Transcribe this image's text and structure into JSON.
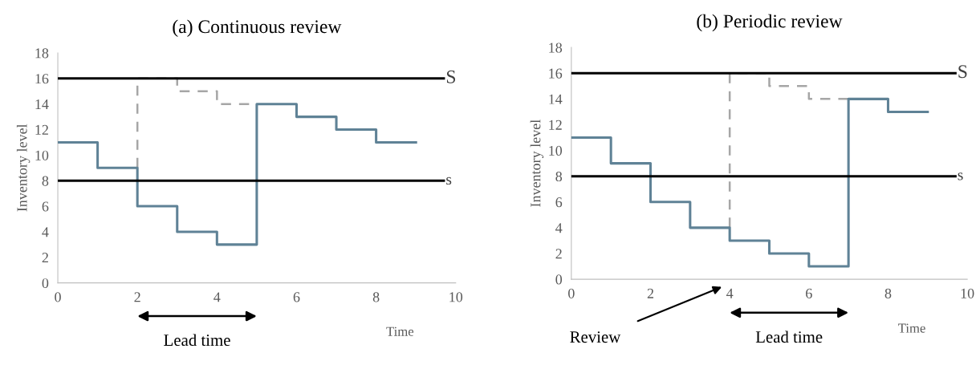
{
  "chart_data": [
    {
      "type": "step",
      "title": "(a) Continuous review",
      "xlabel": "Time",
      "ylabel": "Inventory level",
      "x": [
        0,
        1,
        2,
        3,
        4,
        5,
        6,
        7,
        8,
        9
      ],
      "series": [
        {
          "color": "#5f8296",
          "values": [
            11,
            9,
            6,
            4,
            3,
            14,
            13,
            12,
            11,
            11
          ]
        },
        {
          "type": "line",
          "color": "#a6a6a6",
          "line_style": "dashed",
          "x": [
            2,
            2,
            3,
            3,
            4,
            4,
            5
          ],
          "values": [
            9,
            16,
            16,
            15,
            15,
            14,
            14
          ]
        }
      ],
      "ref_lines": [
        {
          "axis": "y",
          "value": 16,
          "label": "S",
          "color": "#000000"
        },
        {
          "axis": "y",
          "value": 8,
          "label": "s",
          "color": "#000000"
        }
      ],
      "annotations": [
        "Lead time"
      ],
      "xlim": [
        0,
        10
      ],
      "ylim": [
        0,
        18
      ],
      "xticks": [
        0,
        2,
        4,
        6,
        8,
        10
      ],
      "yticks": [
        0,
        2,
        4,
        6,
        8,
        10,
        12,
        14,
        16,
        18
      ],
      "grid": false
    },
    {
      "type": "step",
      "title": "(b) Periodic review",
      "xlabel": "Time",
      "ylabel": "Inventory level",
      "x": [
        0,
        1,
        2,
        3,
        4,
        5,
        6,
        7,
        8,
        9
      ],
      "series": [
        {
          "color": "#5f8296",
          "values": [
            11,
            9,
            6,
            4,
            3,
            2,
            1,
            14,
            13,
            13
          ]
        },
        {
          "type": "line",
          "color": "#a6a6a6",
          "line_style": "dashed",
          "x": [
            4,
            4,
            5,
            5,
            6,
            6,
            7
          ],
          "values": [
            4,
            16,
            16,
            15,
            15,
            14,
            14
          ]
        }
      ],
      "ref_lines": [
        {
          "axis": "y",
          "value": 16,
          "label": "S",
          "color": "#000000"
        },
        {
          "axis": "y",
          "value": 8,
          "label": "s",
          "color": "#000000"
        }
      ],
      "annotations": [
        "Lead time",
        "Review"
      ],
      "xlim": [
        0,
        10
      ],
      "ylim": [
        0,
        18
      ],
      "xticks": [
        0,
        2,
        4,
        6,
        8,
        10
      ],
      "yticks": [
        0,
        2,
        4,
        6,
        8,
        10,
        12,
        14,
        16,
        18
      ],
      "grid": false
    }
  ]
}
